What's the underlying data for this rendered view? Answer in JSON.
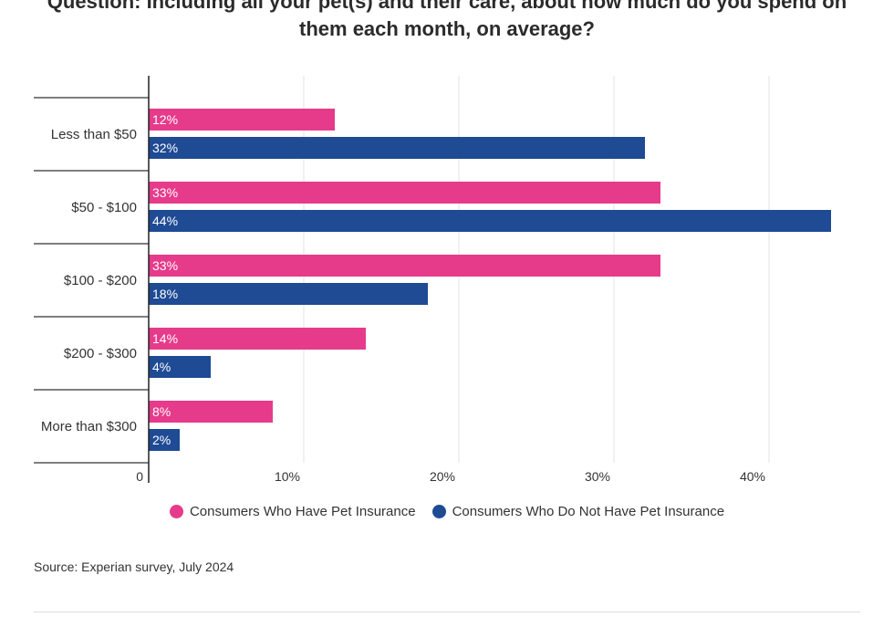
{
  "chart_data": {
    "type": "bar",
    "orientation": "horizontal",
    "title_lines": [
      "Question: Including all your pet(s) and their care, about how much do you spend on",
      "them each month, on average?"
    ],
    "categories": [
      "Less than $50",
      "$50 - $100",
      "$100 - $200",
      "$200 - $300",
      "More than $300"
    ],
    "series": [
      {
        "name": "Consumers Who Have Pet Insurance",
        "color": "#e63b8a",
        "values": [
          12,
          33,
          33,
          14,
          8
        ]
      },
      {
        "name": "Consumers Who Do Not Have Pet Insurance",
        "color": "#1f4a94",
        "values": [
          32,
          44,
          18,
          4,
          2
        ]
      }
    ],
    "xlim": [
      0,
      45
    ],
    "xticks": [
      0,
      10,
      20,
      30,
      40
    ],
    "xtick_labels": [
      "0",
      "10%",
      "20%",
      "30%",
      "40%"
    ],
    "value_suffix": "%",
    "grid": true,
    "legend": "bottom-center"
  },
  "source": "Source: Experian survey, July 2024"
}
